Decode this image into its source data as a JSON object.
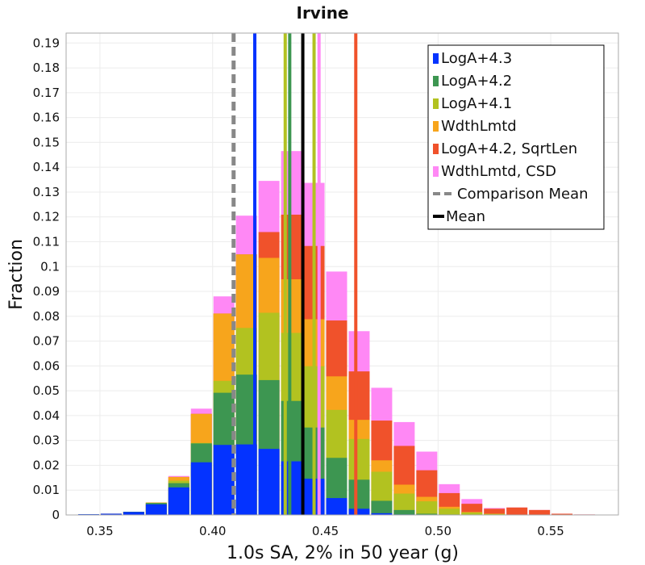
{
  "chart_data": {
    "type": "bar",
    "stacked": true,
    "title": "Irvine",
    "xlabel": "1.0s SA, 2% in 50 year (g)",
    "ylabel": "Fraction",
    "xlim": [
      0.335,
      0.58
    ],
    "ylim": [
      0,
      0.194
    ],
    "xticks": [
      0.35,
      0.4,
      0.45,
      0.5,
      0.55
    ],
    "xtick_labels": [
      "0.35",
      "0.40",
      "0.45",
      "0.50",
      "0.55"
    ],
    "yticks": [
      0,
      0.01,
      0.02,
      0.03,
      0.04,
      0.05,
      0.06,
      0.07,
      0.08,
      0.09,
      0.1,
      0.11,
      0.12,
      0.13,
      0.14,
      0.15,
      0.16,
      0.17,
      0.18,
      0.19
    ],
    "ytick_labels": [
      "0",
      "0.01",
      "0.02",
      "0.03",
      "0.04",
      "0.05",
      "0.06",
      "0.07",
      "0.08",
      "0.09",
      "0.1",
      "0.11",
      "0.12",
      "0.13",
      "0.14",
      "0.15",
      "0.16",
      "0.17",
      "0.18",
      "0.19"
    ],
    "grid": true,
    "legend_position": "top-right",
    "bin_width": 0.01,
    "bin_centers": [
      0.345,
      0.355,
      0.365,
      0.375,
      0.385,
      0.395,
      0.405,
      0.415,
      0.425,
      0.435,
      0.445,
      0.455,
      0.465,
      0.475,
      0.485,
      0.495,
      0.505,
      0.515,
      0.525,
      0.535,
      0.545,
      0.555,
      0.565,
      0.575
    ],
    "series": [
      {
        "name": "LogA+4.3",
        "color": "#0433ff",
        "cumulative": [
          0.0003,
          0.0005,
          0.0012,
          0.0043,
          0.0111,
          0.0212,
          0.0282,
          0.0284,
          0.0266,
          0.0216,
          0.0146,
          0.0068,
          0.0025,
          0.0007,
          0.0002,
          0,
          0,
          0,
          0,
          0,
          0,
          0,
          0,
          0
        ]
      },
      {
        "name": "LogA+4.2",
        "color": "#3d9651",
        "cumulative": [
          0.0003,
          0.0005,
          0.0013,
          0.0048,
          0.0128,
          0.0288,
          0.0492,
          0.0565,
          0.0543,
          0.0459,
          0.0352,
          0.023,
          0.0142,
          0.0057,
          0.002,
          0.0005,
          0.0002,
          0,
          0,
          0,
          0,
          0,
          0,
          0
        ]
      },
      {
        "name": "LogA+4.1",
        "color": "#b2c220",
        "cumulative": [
          0.0003,
          0.0005,
          0.0013,
          0.0049,
          0.0138,
          0.029,
          0.054,
          0.0753,
          0.0814,
          0.0733,
          0.0599,
          0.0423,
          0.0306,
          0.0174,
          0.0086,
          0.0055,
          0.0025,
          0.001,
          0.0004,
          0.0001,
          0,
          0,
          0,
          0
        ]
      },
      {
        "name": "WdthLmtd",
        "color": "#f7a51c",
        "cumulative": [
          0.0003,
          0.0005,
          0.0013,
          0.005,
          0.0153,
          0.0407,
          0.0811,
          0.1049,
          0.1035,
          0.0949,
          0.0788,
          0.0558,
          0.0383,
          0.022,
          0.0122,
          0.0073,
          0.0033,
          0.0012,
          0.0005,
          0.0001,
          0,
          0,
          0,
          0
        ]
      },
      {
        "name": "LogA+4.2, SqrtLen",
        "color": "#f0522b",
        "cumulative": [
          0.0003,
          0.0005,
          0.0013,
          0.005,
          0.0153,
          0.0407,
          0.0811,
          0.1049,
          0.1139,
          0.1209,
          0.1083,
          0.0783,
          0.0578,
          0.038,
          0.0278,
          0.018,
          0.0088,
          0.0045,
          0.0025,
          0.003,
          0.002,
          0.0005,
          0.0002,
          0
        ]
      },
      {
        "name": "WdthLmtd, CSD",
        "color": "#ff88f5",
        "cumulative": [
          0.0003,
          0.0005,
          0.0013,
          0.005,
          0.0157,
          0.0428,
          0.088,
          0.1205,
          0.1345,
          0.1465,
          0.1337,
          0.098,
          0.074,
          0.0512,
          0.0374,
          0.0255,
          0.0124,
          0.0064,
          0.0028,
          0.003,
          0.002,
          0.0005,
          0.0002,
          0
        ]
      }
    ],
    "vertical_lines": [
      {
        "name": "LogA+4.3",
        "x": 0.4187,
        "color": "#0433ff",
        "style": "solid"
      },
      {
        "name": "LogA+4.1",
        "x": 0.4322,
        "color": "#b2c220",
        "style": "solid"
      },
      {
        "name": "LogA+4.2",
        "x": 0.4342,
        "color": "#3d9651",
        "style": "solid"
      },
      {
        "name": "LogA+4.1",
        "x": 0.445,
        "color": "#b2c220",
        "style": "solid"
      },
      {
        "name": "WdthLmtd, CSD",
        "x": 0.4472,
        "color": "#ff88f5",
        "style": "solid"
      },
      {
        "name": "LogA+4.2, SqrtLen",
        "x": 0.4635,
        "color": "#f0522b",
        "style": "solid"
      },
      {
        "name": "Comparison Mean",
        "x": 0.4093,
        "color": "#888888",
        "style": "dashed"
      },
      {
        "name": "Mean",
        "x": 0.44,
        "color": "#000000",
        "style": "solid"
      }
    ],
    "legend": [
      {
        "label": "LogA+4.3",
        "kind": "square",
        "color": "#0433ff"
      },
      {
        "label": "LogA+4.2",
        "kind": "square",
        "color": "#3d9651"
      },
      {
        "label": "LogA+4.1",
        "kind": "square",
        "color": "#b2c220"
      },
      {
        "label": "WdthLmtd",
        "kind": "square",
        "color": "#f7a51c"
      },
      {
        "label": "LogA+4.2, SqrtLen",
        "kind": "square",
        "color": "#f0522b"
      },
      {
        "label": "WdthLmtd, CSD",
        "kind": "square",
        "color": "#ff88f5"
      },
      {
        "label": "Comparison Mean",
        "kind": "dashed",
        "color": "#888888"
      },
      {
        "label": "Mean",
        "kind": "line",
        "color": "#000000"
      }
    ]
  }
}
